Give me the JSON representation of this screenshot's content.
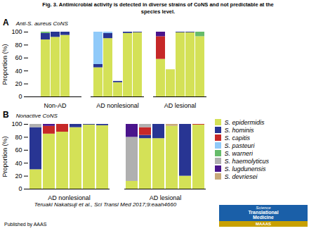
{
  "chart_data": [
    {
      "type": "bar",
      "stacked": true,
      "title": "Fig. 3. Antimicrobial activity is detected in diverse strains of CoNS and not predictable at the\nspecies level.",
      "subtitle": "Anti-S. aureus CoNS",
      "annotations": [
        "A"
      ],
      "categories": [
        "Non-AD",
        "AD nonlesional",
        "AD lesional"
      ],
      "ylabel": "Proportion (%)",
      "ylim": [
        0,
        100
      ],
      "yticks": [
        0,
        20,
        40,
        60,
        80,
        100
      ],
      "series": [
        {
          "name": "S. epidermidis",
          "color": "#d4e157",
          "values": [
            [
              88,
              92,
              95
            ],
            [
              45,
              90,
              22,
              98,
              99
            ],
            [
              58,
              42,
              99,
              99,
              93
            ]
          ]
        },
        {
          "name": "S. hominis",
          "color": "#283593",
          "values": [
            [
              10,
              8,
              5
            ],
            [
              5,
              8,
              2,
              2,
              1
            ],
            [
              0,
              0,
              1,
              1,
              0
            ]
          ]
        },
        {
          "name": "S. capitis",
          "color": "#c62828",
          "values": [
            [
              0,
              0,
              0
            ],
            [
              0,
              0,
              0,
              0,
              0
            ],
            [
              35,
              0,
              0,
              0,
              0
            ]
          ]
        },
        {
          "name": "S. pasteuri",
          "color": "#90caf9",
          "values": [
            [
              0,
              0,
              0
            ],
            [
              50,
              2,
              0,
              0,
              0
            ],
            [
              0,
              0,
              0,
              0,
              0
            ]
          ]
        },
        {
          "name": "S. warneri",
          "color": "#66bb6a",
          "values": [
            [
              2,
              0,
              0
            ],
            [
              0,
              0,
              0,
              0,
              0
            ],
            [
              0,
              0,
              0,
              0,
              7
            ]
          ]
        },
        {
          "name": "S. haemolyticus",
          "color": "#b0b0b0",
          "values": [
            [
              0,
              0,
              0
            ],
            [
              0,
              0,
              0,
              0,
              0
            ],
            [
              0,
              0,
              0,
              0,
              0
            ]
          ]
        },
        {
          "name": "S. lugdunensis",
          "color": "#4a148c",
          "values": [
            [
              0,
              0,
              0
            ],
            [
              0,
              0,
              0,
              0,
              0
            ],
            [
              7,
              0,
              0,
              0,
              0
            ]
          ]
        },
        {
          "name": "S. devriesei",
          "color": "#c8a97a",
          "values": [
            [
              0,
              0,
              0
            ],
            [
              0,
              0,
              0,
              0,
              0
            ],
            [
              0,
              0,
              0,
              0,
              0
            ]
          ]
        }
      ]
    },
    {
      "type": "bar",
      "stacked": true,
      "subtitle": "Nonactive CoNS",
      "annotations": [
        "B",
        "Teruaki Nakatsuji et al., Sci Transl Med 2017;9:eaah4660",
        "Published by AAAS",
        "Science",
        "Translational",
        "Medicine",
        "MAAAS"
      ],
      "categories": [
        "AD nonlesional",
        "AD lesional"
      ],
      "ylabel": "Proportion (%)",
      "ylim": [
        0,
        100
      ],
      "yticks": [
        0,
        20,
        40,
        60,
        80,
        100
      ],
      "legend": "right",
      "series": [
        {
          "name": "S. epidermidis",
          "color": "#d4e157",
          "values": [
            [
              30,
              85,
              88,
              95,
              99,
              98
            ],
            [
              12,
              78,
              78,
              97,
              20,
              99
            ]
          ]
        },
        {
          "name": "S. hominis",
          "color": "#283593",
          "values": [
            [
              65,
              0,
              0,
              5,
              1,
              2
            ],
            [
              0,
              5,
              22,
              0,
              80,
              0
            ]
          ]
        },
        {
          "name": "S. capitis",
          "color": "#c62828",
          "values": [
            [
              0,
              12,
              12,
              0,
              0,
              0
            ],
            [
              0,
              12,
              0,
              0,
              0,
              1
            ]
          ]
        },
        {
          "name": "S. pasteuri",
          "color": "#90caf9",
          "values": [
            [
              0,
              0,
              0,
              0,
              0,
              0
            ],
            [
              0,
              0,
              0,
              0,
              0,
              0
            ]
          ]
        },
        {
          "name": "S. warneri",
          "color": "#66bb6a",
          "values": [
            [
              0,
              0,
              0,
              0,
              0,
              0
            ],
            [
              0,
              0,
              0,
              0,
              0,
              0
            ]
          ]
        },
        {
          "name": "S. haemolyticus",
          "color": "#b0b0b0",
          "values": [
            [
              5,
              0,
              0,
              0,
              0,
              0
            ],
            [
              68,
              5,
              0,
              0,
              0,
              0
            ]
          ]
        },
        {
          "name": "S. lugdunensis",
          "color": "#4a148c",
          "values": [
            [
              0,
              3,
              0,
              0,
              0,
              0
            ],
            [
              20,
              0,
              0,
              0,
              0,
              0
            ]
          ]
        },
        {
          "name": "S. devriesei",
          "color": "#c8a97a",
          "values": [
            [
              0,
              0,
              0,
              0,
              0,
              0
            ],
            [
              0,
              0,
              0,
              3,
              0,
              0
            ]
          ]
        }
      ]
    }
  ]
}
